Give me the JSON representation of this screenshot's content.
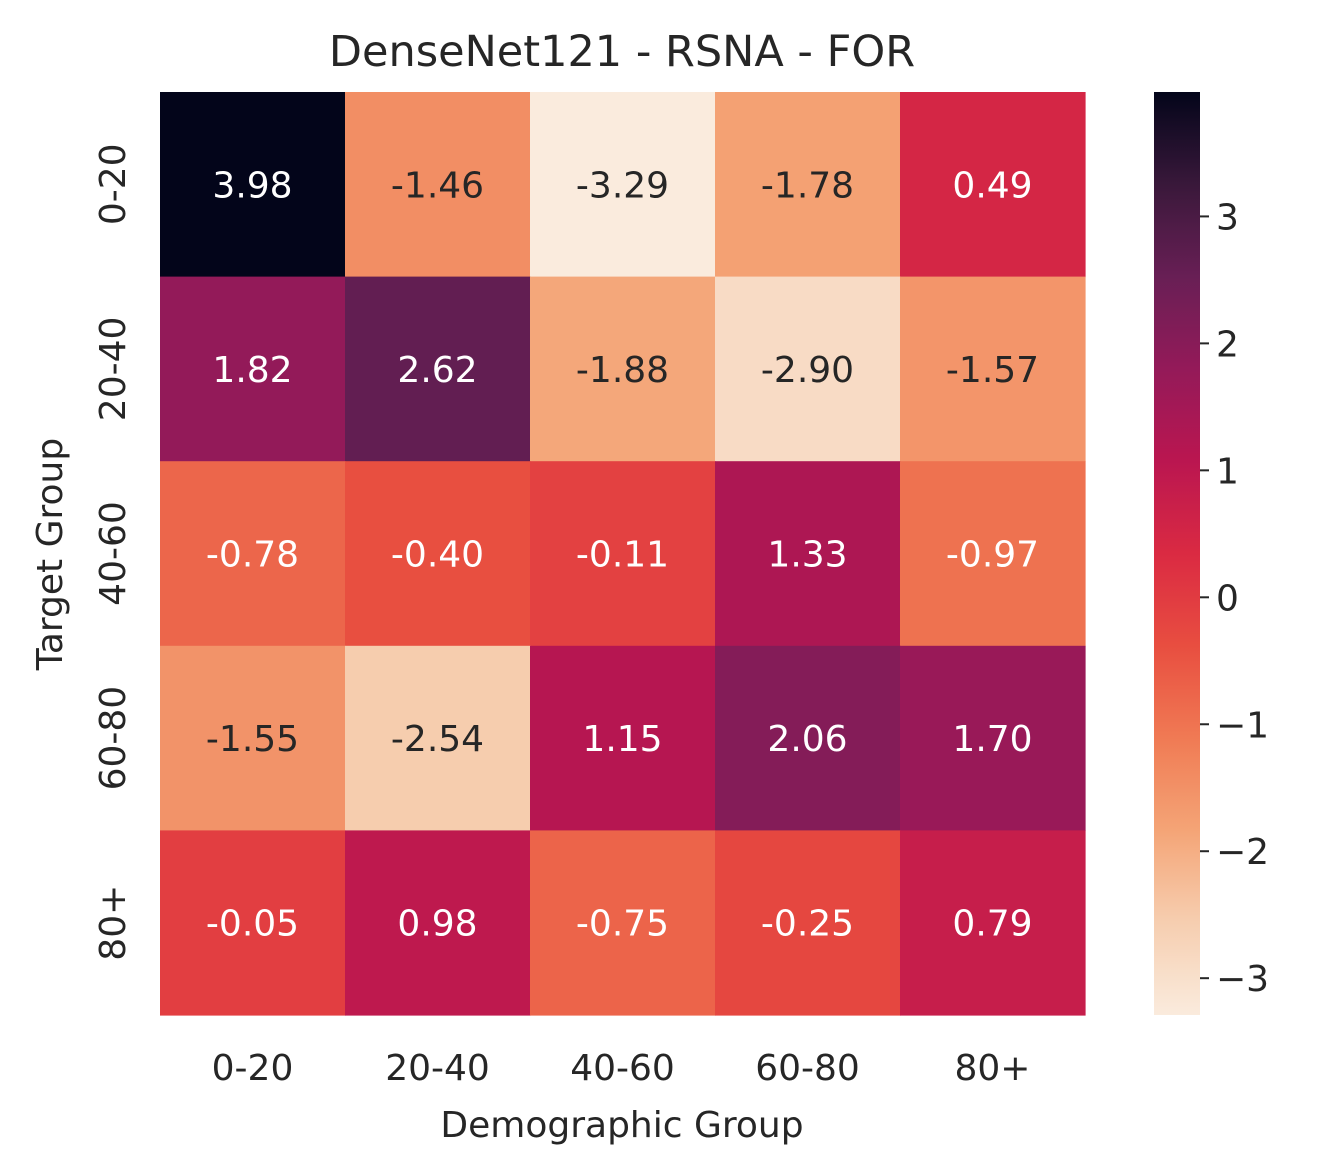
{
  "chart_data": {
    "type": "heatmap",
    "title": "DenseNet121 - RSNA - FOR",
    "xlabel": "Demographic Group",
    "ylabel": "Target Group",
    "x_categories": [
      "0-20",
      "20-40",
      "40-60",
      "60-80",
      "80+"
    ],
    "y_categories": [
      "0-20",
      "20-40",
      "40-60",
      "60-80",
      "80+"
    ],
    "values": [
      [
        3.98,
        -1.46,
        -3.29,
        -1.78,
        0.49
      ],
      [
        1.82,
        2.62,
        -1.88,
        -2.9,
        -1.57
      ],
      [
        -0.78,
        -0.4,
        -0.11,
        1.33,
        -0.97
      ],
      [
        -1.55,
        -2.54,
        1.15,
        2.06,
        1.7
      ],
      [
        -0.05,
        0.98,
        -0.75,
        -0.25,
        0.79
      ]
    ],
    "value_format": "0.00",
    "colorbar": {
      "min": -3.29,
      "max": 3.98,
      "ticks": [
        -3,
        -2,
        -1,
        0,
        1,
        2,
        3
      ],
      "tick_labels": [
        "−3",
        "−2",
        "−1",
        "0",
        "1",
        "2",
        "3"
      ],
      "colormap": "rocket_r"
    }
  }
}
